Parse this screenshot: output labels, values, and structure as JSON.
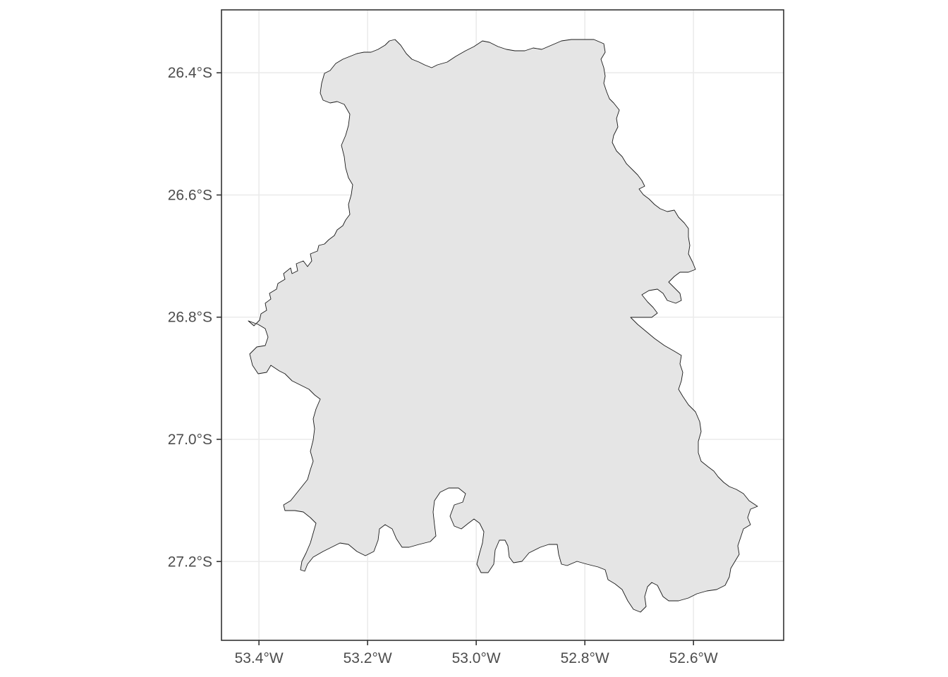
{
  "map": {
    "projection": "geographic",
    "grid": true,
    "legend": "none",
    "region_fill": "#e5e5e5",
    "region_outline": "#1a1a1a",
    "x_ticks": [
      {
        "value": -53.4,
        "label": "53.4°W"
      },
      {
        "value": -53.2,
        "label": "53.2°W"
      },
      {
        "value": -53.0,
        "label": "53.0°W"
      },
      {
        "value": -52.8,
        "label": "52.8°W"
      },
      {
        "value": -52.6,
        "label": "52.6°W"
      }
    ],
    "y_ticks": [
      {
        "value": -26.4,
        "label": "26.4°S"
      },
      {
        "value": -26.6,
        "label": "26.6°S"
      },
      {
        "value": -26.8,
        "label": "26.8°S"
      },
      {
        "value": -27.0,
        "label": "27.0°S"
      },
      {
        "value": -27.2,
        "label": "27.2°S"
      }
    ],
    "xlim": [
      -53.469,
      -52.434
    ],
    "ylim": [
      -27.329,
      -26.297
    ]
  }
}
